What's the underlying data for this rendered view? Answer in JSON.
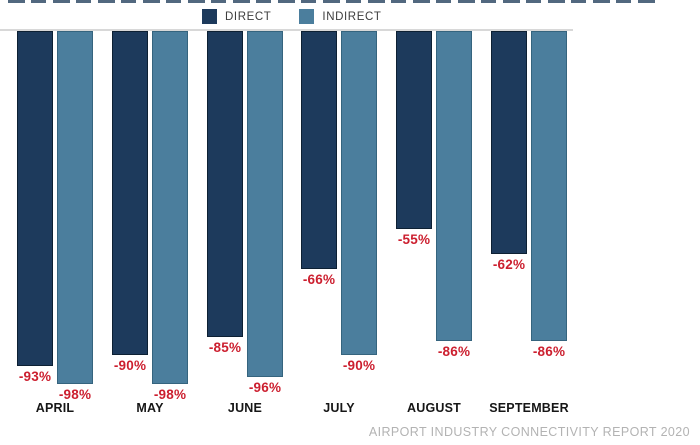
{
  "legend": {
    "items": [
      {
        "label": "DIRECT",
        "color": "#1d3a5c"
      },
      {
        "label": "INDIRECT",
        "color": "#4b7e9d"
      }
    ]
  },
  "chart_data": {
    "type": "bar",
    "orientation": "vertical",
    "title": "",
    "categories": [
      "APRIL",
      "MAY",
      "JUNE",
      "JULY",
      "AUGUST",
      "SEPTEMBER"
    ],
    "series": [
      {
        "name": "DIRECT",
        "color": "#1d3a5c",
        "border_color": "#0d2033",
        "values": [
          -93,
          -90,
          -85,
          -66,
          -55,
          -62
        ]
      },
      {
        "name": "INDIRECT",
        "color": "#4b7e9d",
        "border_color": "#35647e",
        "values": [
          -98,
          -98,
          -96,
          -90,
          -86,
          -86
        ]
      }
    ],
    "value_labels": {
      "format": "{value}%",
      "color": "#cc1f2f"
    },
    "ylim": [
      -100,
      0
    ],
    "baseline": 0,
    "grid": false,
    "axis_line_color": "#d8d8d8",
    "legend_position": "top-center"
  },
  "footer": {
    "source": "AIRPORT INDUSTRY CONNECTIVITY REPORT 2020"
  }
}
